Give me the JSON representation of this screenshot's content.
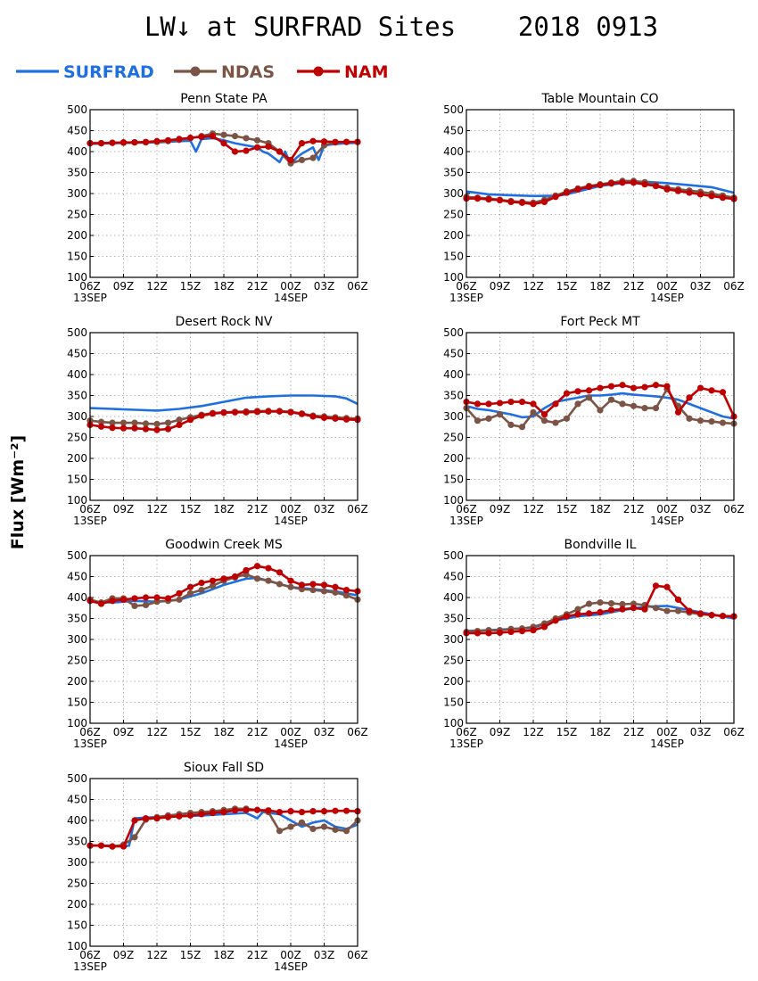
{
  "page": {
    "title": "LW↓ at SURFRAD Sites    2018 0913",
    "ylabel": "Flux [Wm⁻²]"
  },
  "legend": [
    {
      "name": "SURFRAD",
      "color": "#1f6fe0",
      "marker": false
    },
    {
      "name": "NDAS",
      "color": "#7b5446",
      "marker": true
    },
    {
      "name": "NAM",
      "color": "#c00000",
      "marker": true
    }
  ],
  "axes": {
    "x_ticks": [
      "06Z",
      "09Z",
      "12Z",
      "15Z",
      "18Z",
      "21Z",
      "00Z",
      "03Z",
      "06Z"
    ],
    "x_ticks_hours": [
      0,
      3,
      6,
      9,
      12,
      15,
      18,
      21,
      24
    ],
    "x_date_labels": [
      {
        "text": "13SEP",
        "at": 0
      },
      {
        "text": "14SEP",
        "at": 18
      }
    ],
    "y_ticks": [
      100,
      150,
      200,
      250,
      300,
      350,
      400,
      450,
      500
    ],
    "ylim": [
      100,
      500
    ],
    "xlim": [
      0,
      24
    ]
  },
  "chart_data": [
    {
      "type": "line",
      "title": "Penn State PA",
      "x_unit": "hours since 13SEP 06Z",
      "series": [
        {
          "name": "SURFRAD",
          "x": [
            0,
            2,
            4,
            6,
            8,
            9,
            9.5,
            10,
            11,
            12,
            13,
            14,
            15,
            15.5,
            16,
            16.5,
            17,
            17.5,
            18,
            18.5,
            19,
            20,
            20.5,
            21,
            22,
            23,
            24
          ],
          "y": [
            418,
            420,
            421,
            422,
            425,
            426,
            400,
            430,
            432,
            427,
            420,
            415,
            410,
            400,
            395,
            385,
            375,
            400,
            370,
            385,
            395,
            410,
            380,
            415,
            418,
            420,
            421
          ]
        },
        {
          "name": "NDAS",
          "x": [
            0,
            1,
            2,
            3,
            4,
            5,
            6,
            7,
            8,
            9,
            10,
            11,
            12,
            13,
            14,
            15,
            16,
            17,
            18,
            19,
            20,
            21,
            22,
            23,
            24
          ],
          "y": [
            420,
            420,
            421,
            421,
            422,
            422,
            423,
            425,
            428,
            432,
            437,
            443,
            440,
            437,
            432,
            427,
            420,
            400,
            372,
            380,
            385,
            415,
            422,
            423,
            423
          ]
        },
        {
          "name": "NAM",
          "x": [
            0,
            1,
            2,
            3,
            4,
            5,
            6,
            7,
            8,
            9,
            10,
            11,
            12,
            13,
            14,
            15,
            16,
            17,
            18,
            19,
            20,
            21,
            22,
            23,
            24
          ],
          "y": [
            420,
            420,
            421,
            422,
            422,
            423,
            425,
            427,
            430,
            433,
            435,
            437,
            420,
            400,
            402,
            410,
            412,
            400,
            380,
            420,
            425,
            424,
            423,
            423,
            423
          ]
        }
      ]
    },
    {
      "type": "line",
      "title": "Table Mountain CO",
      "x_unit": "hours since 13SEP 06Z",
      "series": [
        {
          "name": "SURFRAD",
          "x": [
            0,
            2,
            4,
            6,
            8,
            9,
            10,
            12,
            14,
            16,
            18,
            20,
            22,
            24
          ],
          "y": [
            305,
            298,
            296,
            294,
            295,
            298,
            305,
            318,
            325,
            328,
            325,
            320,
            315,
            302
          ]
        },
        {
          "name": "NDAS",
          "x": [
            0,
            1,
            2,
            3,
            4,
            5,
            6,
            7,
            8,
            9,
            10,
            11,
            12,
            13,
            14,
            15,
            16,
            17,
            18,
            19,
            20,
            21,
            22,
            23,
            24
          ],
          "y": [
            292,
            290,
            288,
            285,
            282,
            280,
            278,
            285,
            295,
            305,
            312,
            318,
            322,
            326,
            330,
            330,
            327,
            320,
            314,
            310,
            307,
            304,
            300,
            295,
            290
          ]
        },
        {
          "name": "NAM",
          "x": [
            0,
            1,
            2,
            3,
            4,
            5,
            6,
            7,
            8,
            9,
            10,
            11,
            12,
            13,
            14,
            15,
            16,
            17,
            18,
            19,
            20,
            21,
            22,
            23,
            24
          ],
          "y": [
            288,
            288,
            286,
            284,
            280,
            278,
            275,
            280,
            292,
            302,
            310,
            316,
            320,
            324,
            326,
            326,
            322,
            318,
            310,
            306,
            302,
            298,
            294,
            290,
            287
          ]
        }
      ]
    },
    {
      "type": "line",
      "title": "Desert Rock NV",
      "x_unit": "hours since 13SEP 06Z",
      "series": [
        {
          "name": "SURFRAD",
          "x": [
            0,
            2,
            4,
            6,
            8,
            10,
            12,
            14,
            16,
            18,
            20,
            22,
            23,
            24
          ],
          "y": [
            320,
            318,
            316,
            314,
            318,
            325,
            335,
            345,
            348,
            350,
            350,
            348,
            343,
            330
          ]
        },
        {
          "name": "NDAS",
          "x": [
            0,
            1,
            2,
            3,
            4,
            5,
            6,
            7,
            8,
            9,
            10,
            11,
            12,
            13,
            14,
            15,
            16,
            17,
            18,
            19,
            20,
            21,
            22,
            23,
            24
          ],
          "y": [
            290,
            287,
            285,
            285,
            285,
            283,
            282,
            285,
            292,
            298,
            304,
            308,
            310,
            311,
            312,
            313,
            313,
            313,
            311,
            307,
            302,
            300,
            298,
            296,
            295
          ]
        },
        {
          "name": "NAM",
          "x": [
            0,
            1,
            2,
            3,
            4,
            5,
            6,
            7,
            8,
            9,
            10,
            11,
            12,
            13,
            14,
            15,
            16,
            17,
            18,
            19,
            20,
            21,
            22,
            23,
            24
          ],
          "y": [
            280,
            276,
            273,
            272,
            272,
            270,
            268,
            270,
            280,
            292,
            302,
            307,
            309,
            310,
            310,
            311,
            312,
            312,
            310,
            306,
            300,
            297,
            295,
            293,
            292
          ]
        }
      ]
    },
    {
      "type": "line",
      "title": "Fort Peck MT",
      "x_unit": "hours since 13SEP 06Z",
      "series": [
        {
          "name": "SURFRAD",
          "x": [
            0,
            1,
            2,
            3,
            4,
            5,
            6,
            7,
            8,
            9,
            10,
            11,
            12,
            13,
            14,
            15,
            16,
            17,
            18,
            19,
            20,
            21,
            22,
            23,
            24
          ],
          "y": [
            325,
            318,
            315,
            310,
            305,
            298,
            300,
            320,
            335,
            340,
            345,
            350,
            350,
            352,
            355,
            352,
            350,
            348,
            345,
            340,
            330,
            320,
            310,
            300,
            295
          ]
        },
        {
          "name": "NDAS",
          "x": [
            0,
            1,
            2,
            3,
            4,
            5,
            6,
            7,
            8,
            9,
            10,
            11,
            12,
            13,
            14,
            15,
            16,
            17,
            18,
            19,
            20,
            21,
            22,
            23,
            24
          ],
          "y": [
            320,
            290,
            295,
            305,
            280,
            275,
            310,
            290,
            285,
            295,
            330,
            345,
            315,
            340,
            330,
            325,
            320,
            320,
            365,
            325,
            295,
            290,
            288,
            285,
            283
          ]
        },
        {
          "name": "NAM",
          "x": [
            0,
            1,
            2,
            3,
            4,
            5,
            6,
            7,
            8,
            9,
            10,
            11,
            12,
            13,
            14,
            15,
            16,
            17,
            18,
            19,
            20,
            21,
            22,
            23,
            24
          ],
          "y": [
            335,
            330,
            330,
            332,
            335,
            335,
            330,
            305,
            330,
            355,
            360,
            362,
            368,
            372,
            375,
            368,
            370,
            375,
            372,
            310,
            345,
            368,
            362,
            358,
            300
          ]
        }
      ]
    },
    {
      "type": "line",
      "title": "Goodwin Creek MS",
      "x_unit": "hours since 13SEP 06Z",
      "series": [
        {
          "name": "SURFRAD",
          "x": [
            0,
            2,
            4,
            6,
            8,
            10,
            12,
            14,
            15,
            16,
            18,
            20,
            22,
            24
          ],
          "y": [
            390,
            388,
            392,
            390,
            395,
            410,
            430,
            445,
            447,
            440,
            425,
            420,
            415,
            405
          ]
        },
        {
          "name": "NDAS",
          "x": [
            0,
            1,
            2,
            3,
            4,
            5,
            6,
            7,
            8,
            9,
            10,
            11,
            12,
            13,
            14,
            15,
            16,
            17,
            18,
            19,
            20,
            21,
            22,
            23,
            24
          ],
          "y": [
            395,
            388,
            398,
            398,
            380,
            382,
            390,
            392,
            395,
            410,
            418,
            428,
            440,
            448,
            455,
            445,
            440,
            432,
            425,
            420,
            418,
            415,
            412,
            405,
            395
          ]
        },
        {
          "name": "NAM",
          "x": [
            0,
            1,
            2,
            3,
            4,
            5,
            6,
            7,
            8,
            9,
            10,
            11,
            12,
            13,
            14,
            15,
            16,
            17,
            18,
            19,
            20,
            21,
            22,
            23,
            24
          ],
          "y": [
            392,
            385,
            392,
            395,
            398,
            400,
            400,
            398,
            410,
            425,
            435,
            440,
            445,
            450,
            465,
            475,
            470,
            460,
            440,
            430,
            432,
            430,
            425,
            418,
            415
          ]
        }
      ]
    },
    {
      "type": "line",
      "title": "Bondville IL",
      "x_unit": "hours since 13SEP 06Z",
      "series": [
        {
          "name": "SURFRAD",
          "x": [
            0,
            2,
            4,
            6,
            8,
            10,
            12,
            14,
            16,
            18,
            20,
            22,
            24
          ],
          "y": [
            320,
            322,
            325,
            328,
            345,
            355,
            360,
            370,
            378,
            380,
            370,
            360,
            350
          ]
        },
        {
          "name": "NDAS",
          "x": [
            0,
            1,
            2,
            3,
            4,
            5,
            6,
            7,
            8,
            9,
            10,
            11,
            12,
            13,
            14,
            15,
            16,
            17,
            18,
            19,
            20,
            21,
            22,
            23,
            24
          ],
          "y": [
            318,
            320,
            322,
            322,
            325,
            326,
            330,
            338,
            350,
            360,
            372,
            385,
            388,
            386,
            384,
            385,
            382,
            375,
            368,
            368,
            364,
            360,
            358,
            356,
            355
          ]
        },
        {
          "name": "NAM",
          "x": [
            0,
            1,
            2,
            3,
            4,
            5,
            6,
            7,
            8,
            9,
            10,
            11,
            12,
            13,
            14,
            15,
            16,
            17,
            18,
            19,
            20,
            21,
            22,
            23,
            24
          ],
          "y": [
            315,
            315,
            315,
            316,
            318,
            320,
            322,
            330,
            345,
            355,
            360,
            362,
            365,
            370,
            372,
            375,
            372,
            428,
            425,
            395,
            368,
            362,
            358,
            356,
            355
          ]
        }
      ]
    },
    {
      "type": "line",
      "title": "Sioux Fall SD",
      "x_unit": "hours since 13SEP 06Z",
      "series": [
        {
          "name": "SURFRAD",
          "x": [
            0,
            2,
            3,
            3.5,
            4,
            6,
            8,
            10,
            12,
            14,
            15,
            15.5,
            16,
            17,
            18,
            19,
            20,
            21,
            22,
            23,
            24
          ],
          "y": [
            340,
            340,
            338,
            340,
            405,
            408,
            410,
            412,
            415,
            418,
            405,
            420,
            418,
            415,
            400,
            385,
            395,
            400,
            385,
            380,
            390
          ]
        },
        {
          "name": "NDAS",
          "x": [
            0,
            1,
            2,
            3,
            4,
            5,
            6,
            7,
            8,
            9,
            10,
            11,
            12,
            13,
            14,
            15,
            16,
            17,
            18,
            19,
            20,
            21,
            22,
            23,
            24
          ],
          "y": [
            340,
            340,
            338,
            342,
            360,
            402,
            408,
            412,
            415,
            418,
            420,
            422,
            425,
            428,
            428,
            425,
            420,
            375,
            385,
            395,
            380,
            385,
            378,
            375,
            400
          ]
        },
        {
          "name": "NAM",
          "x": [
            0,
            1,
            2,
            3,
            4,
            5,
            6,
            7,
            8,
            9,
            10,
            11,
            12,
            13,
            14,
            15,
            16,
            17,
            18,
            19,
            20,
            21,
            22,
            23,
            24
          ],
          "y": [
            340,
            340,
            338,
            338,
            400,
            405,
            405,
            408,
            410,
            412,
            415,
            418,
            420,
            424,
            425,
            425,
            424,
            420,
            422,
            420,
            422,
            422,
            423,
            423,
            422
          ]
        }
      ]
    }
  ]
}
